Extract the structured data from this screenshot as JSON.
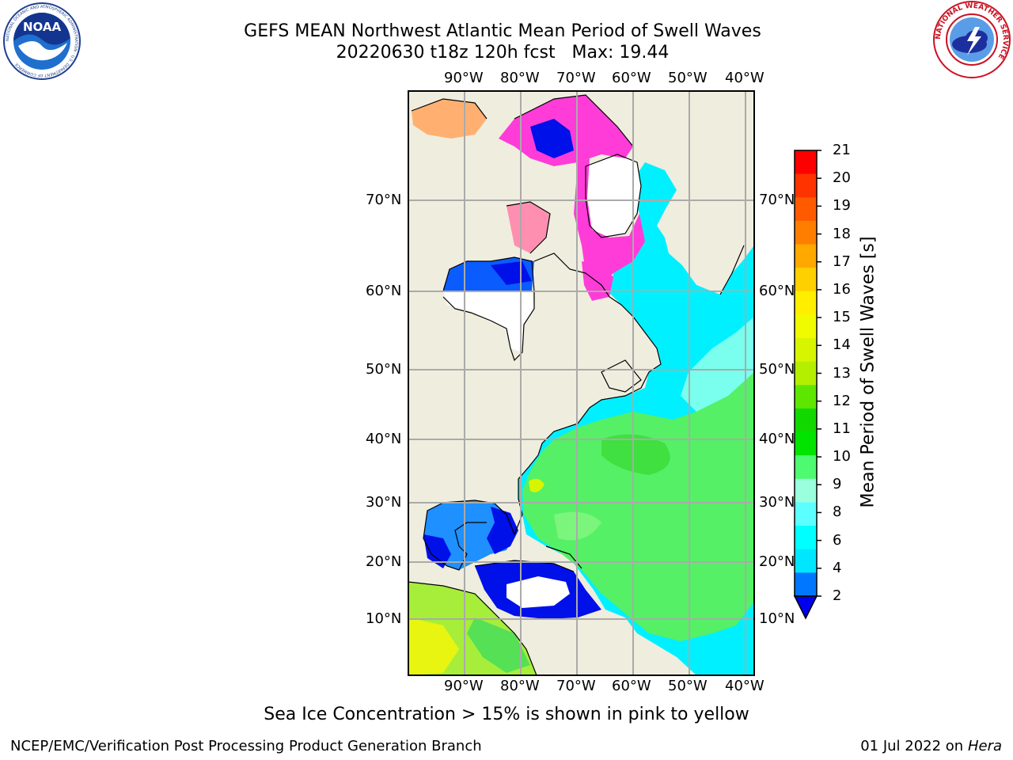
{
  "header": {
    "title_line1": "GEFS MEAN Northwest Atlantic Mean Period of Swell Waves",
    "title_line2": "20220630 t18z 120h fcst   Max: 19.44",
    "left_logo": "noaa-logo",
    "right_logo": "national-weather-service-logo",
    "left_logo_text": "NOAA",
    "left_logo_ring_text": "NATIONAL OCEANIC AND ATMOSPHERIC ADMINISTRATION · U.S. DEPARTMENT OF COMMERCE",
    "right_logo_ring_text": "NATIONAL WEATHER SERVICE"
  },
  "map": {
    "lon_labels": [
      "90°W",
      "80°W",
      "70°W",
      "60°W",
      "50°W",
      "40°W"
    ],
    "lat_labels": [
      "70°N",
      "60°N",
      "50°N",
      "40°N",
      "30°N",
      "20°N",
      "10°N"
    ],
    "colors": {
      "land": "#efedde",
      "ice_free_white": "#ffffff",
      "grid": "#aaaaaa",
      "coast": "#000000"
    }
  },
  "colorbar": {
    "label": "Mean Period of Swell Waves [s]",
    "ticks": [
      "21",
      "20",
      "19",
      "18",
      "17",
      "16",
      "15",
      "14",
      "13",
      "12",
      "11",
      "10",
      "9",
      "8",
      "6",
      "4",
      "2"
    ],
    "colors": [
      "#ff0000",
      "#ff3300",
      "#ff5a00",
      "#ff7e00",
      "#ffa800",
      "#ffd000",
      "#ffee00",
      "#f0fb00",
      "#d8f500",
      "#b5ef00",
      "#5ee600",
      "#11d900",
      "#00e400",
      "#4dfa70",
      "#99ffdd",
      "#5cffff",
      "#00ffff",
      "#00e6ff",
      "#0077ff"
    ],
    "under_color": "#0000ee"
  },
  "footer": {
    "caption": "Sea Ice Concentration > 15% is shown in pink to yellow",
    "credit": "NCEP/EMC/Verification Post Processing Product Generation Branch",
    "date": "01 Jul 2022 on",
    "machine": "Hera"
  }
}
